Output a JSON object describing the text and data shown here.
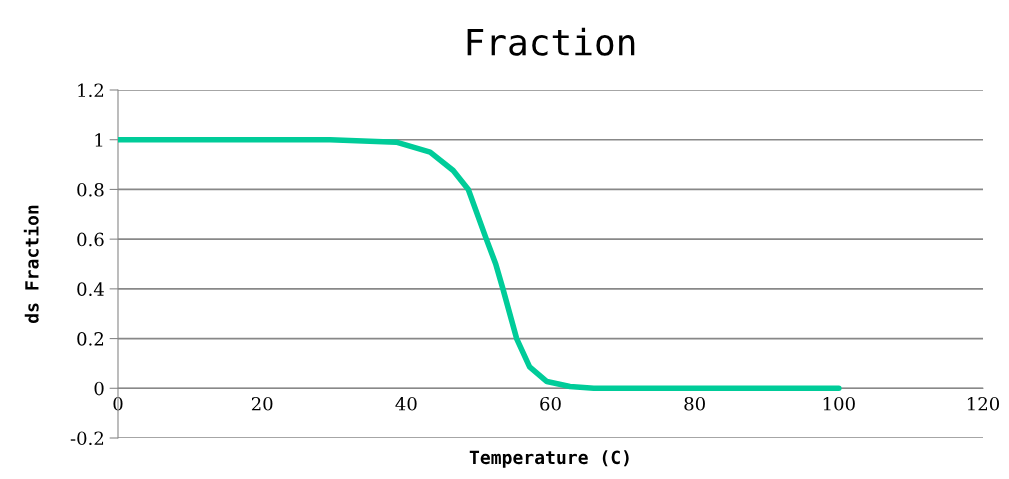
{
  "chart_data": {
    "type": "line",
    "title": "Fraction",
    "xlabel": "Temperature (C)",
    "ylabel": "ds Fraction",
    "x": [
      0,
      10,
      20,
      29.4,
      38.6,
      43.3,
      46.5,
      48.6,
      51.1,
      52.4,
      53.4,
      55.3,
      57.1,
      59.5,
      62.7,
      66,
      70,
      80,
      90,
      100
    ],
    "series": [
      {
        "color": "#00cc99",
        "values": [
          1,
          1,
          1,
          1,
          0.99,
          0.95,
          0.876,
          0.8,
          0.6,
          0.5,
          0.4,
          0.2,
          0.086,
          0.027,
          0.007,
          0,
          0,
          0,
          0,
          0
        ]
      }
    ],
    "xlim": [
      0,
      120
    ],
    "xticks": [
      0,
      20,
      40,
      60,
      80,
      100,
      120
    ],
    "ylim": [
      -0.2,
      1.2
    ],
    "yticks": [
      {
        "value": -0.2,
        "label": "-0.2"
      },
      0,
      0.2,
      0.4,
      0.6,
      0.8,
      1,
      1.2
    ],
    "grid": "y",
    "marker": "none",
    "line_style": "solid",
    "legend": false
  }
}
